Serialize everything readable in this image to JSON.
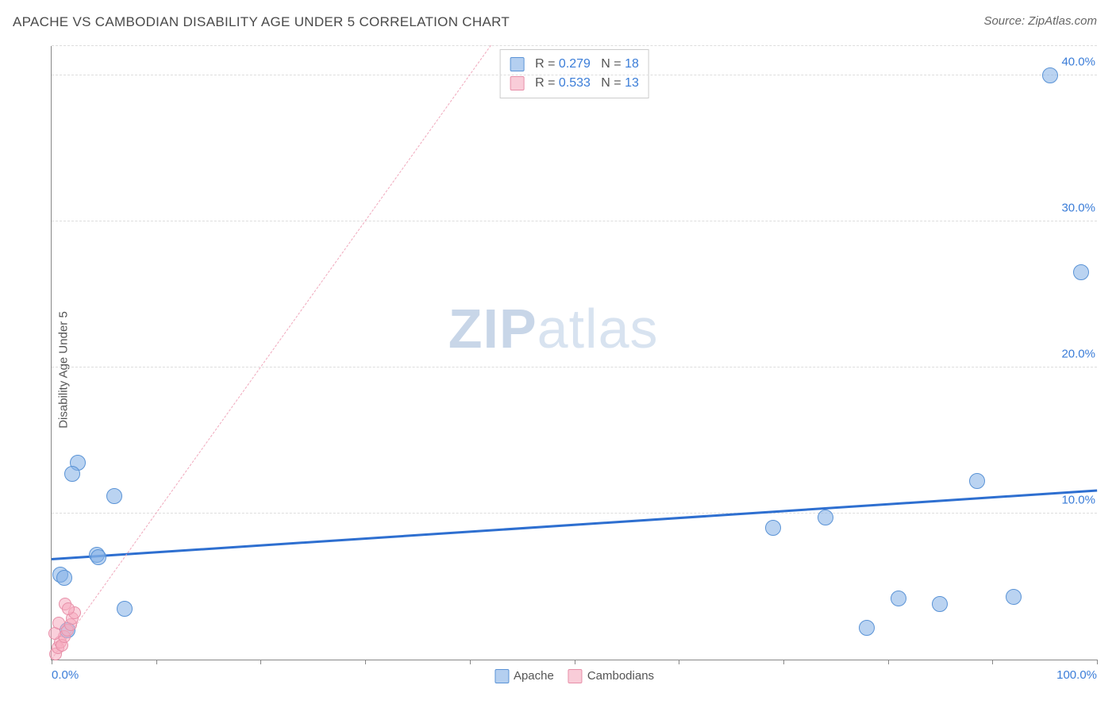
{
  "header": {
    "title": "APACHE VS CAMBODIAN DISABILITY AGE UNDER 5 CORRELATION CHART",
    "source": "Source: ZipAtlas.com"
  },
  "chart": {
    "type": "scatter",
    "ylabel": "Disability Age Under 5",
    "xlim": [
      0,
      100
    ],
    "ylim": [
      0,
      42
    ],
    "x_tick_step": 10,
    "y_grid": [
      10,
      20,
      30,
      40,
      42
    ],
    "y_tick_labels": [
      {
        "v": 10,
        "label": "10.0%"
      },
      {
        "v": 20,
        "label": "20.0%"
      },
      {
        "v": 30,
        "label": "30.0%"
      },
      {
        "v": 40,
        "label": "40.0%"
      }
    ],
    "x_min_label": "0.0%",
    "x_max_label": "100.0%",
    "background_color": "#ffffff",
    "grid_color": "#dddddd",
    "axis_color": "#888888",
    "series": [
      {
        "name": "Apache",
        "color_fill": "rgba(130,175,230,0.55)",
        "color_stroke": "#5a93d6",
        "marker_size": 20,
        "r": "0.279",
        "n": "18",
        "trend": {
          "x1": 0,
          "y1": 6.8,
          "x2": 100,
          "y2": 11.5,
          "width": 3,
          "style": "solid",
          "color": "#2e6fd0"
        },
        "points": [
          {
            "x": 2.5,
            "y": 13.5
          },
          {
            "x": 2.0,
            "y": 12.7
          },
          {
            "x": 6.0,
            "y": 11.2
          },
          {
            "x": 4.3,
            "y": 7.2
          },
          {
            "x": 4.5,
            "y": 7.0
          },
          {
            "x": 0.8,
            "y": 5.8
          },
          {
            "x": 1.2,
            "y": 5.6
          },
          {
            "x": 7.0,
            "y": 3.5
          },
          {
            "x": 1.5,
            "y": 2.0
          },
          {
            "x": 69.0,
            "y": 9.0
          },
          {
            "x": 74.0,
            "y": 9.7
          },
          {
            "x": 78.0,
            "y": 2.2
          },
          {
            "x": 81.0,
            "y": 4.2
          },
          {
            "x": 85.0,
            "y": 3.8
          },
          {
            "x": 88.5,
            "y": 12.2
          },
          {
            "x": 92.0,
            "y": 4.3
          },
          {
            "x": 95.5,
            "y": 40.0
          },
          {
            "x": 98.5,
            "y": 26.5
          }
        ]
      },
      {
        "name": "Cambodians",
        "color_fill": "rgba(245,170,190,0.55)",
        "color_stroke": "#e78fa8",
        "marker_size": 16,
        "r": "0.533",
        "n": "13",
        "trend": {
          "x1": 0,
          "y1": 0,
          "x2": 42,
          "y2": 42,
          "width": 1.5,
          "style": "dashed",
          "color": "#f0a8bc"
        },
        "points": [
          {
            "x": 0.4,
            "y": 0.4
          },
          {
            "x": 0.6,
            "y": 0.8
          },
          {
            "x": 0.8,
            "y": 1.2
          },
          {
            "x": 1.0,
            "y": 1.0
          },
          {
            "x": 1.2,
            "y": 1.6
          },
          {
            "x": 1.5,
            "y": 2.0
          },
          {
            "x": 1.8,
            "y": 2.4
          },
          {
            "x": 0.3,
            "y": 1.8
          },
          {
            "x": 2.0,
            "y": 2.8
          },
          {
            "x": 2.2,
            "y": 3.2
          },
          {
            "x": 1.3,
            "y": 3.8
          },
          {
            "x": 1.6,
            "y": 3.5
          },
          {
            "x": 0.7,
            "y": 2.5
          }
        ]
      }
    ],
    "legend_x": [
      {
        "swatch": "sw-blue",
        "label": "Apache"
      },
      {
        "swatch": "sw-pink",
        "label": "Cambodians"
      }
    ],
    "watermark": {
      "zip": "ZIP",
      "atlas": "atlas"
    }
  }
}
